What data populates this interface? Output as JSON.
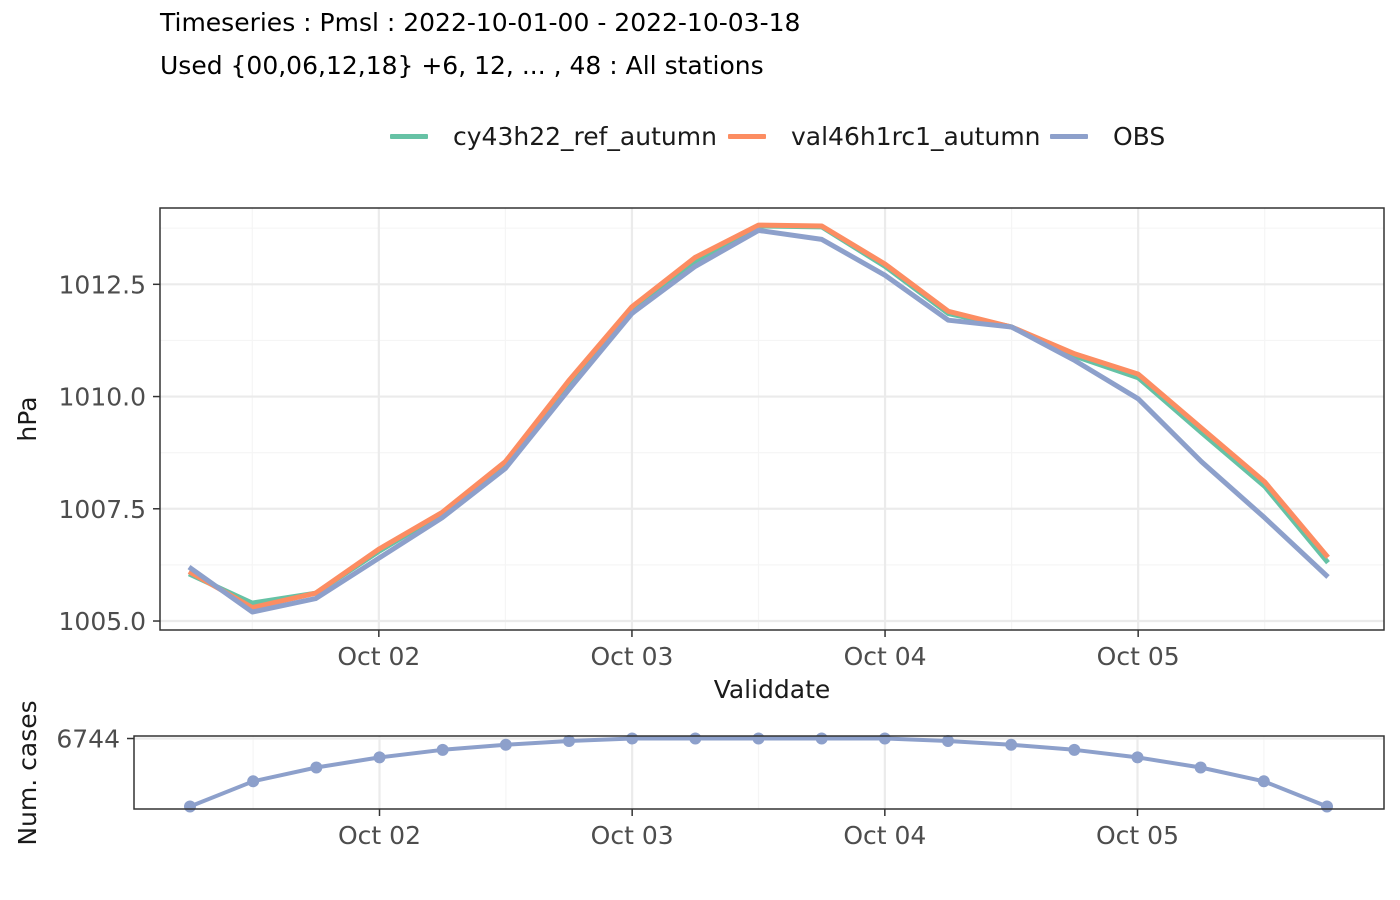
{
  "title_line1": "Timeseries : Pmsl : 2022-10-01-00 - 2022-10-03-18",
  "title_line2": "Used {00,06,12,18} +6, 12, ... , 48 : All stations",
  "colors": {
    "cy43h22_ref_autumn": "#66c2a5",
    "val46h1rc1_autumn": "#fc8d62",
    "OBS": "#8da0cb",
    "cases": "#8da0cb",
    "grid_major": "#ebebeb",
    "grid_minor": "#f5f5f5",
    "axis_text": "#4d4d4d"
  },
  "chart_data": [
    {
      "type": "line",
      "title": "",
      "xlabel": "Validdate",
      "ylabel": "hPa",
      "x": [
        "2022-10-01 06:00",
        "2022-10-01 12:00",
        "2022-10-01 18:00",
        "2022-10-02 00:00",
        "2022-10-02 06:00",
        "2022-10-02 12:00",
        "2022-10-02 18:00",
        "2022-10-03 00:00",
        "2022-10-03 06:00",
        "2022-10-03 12:00",
        "2022-10-03 18:00",
        "2022-10-04 00:00",
        "2022-10-04 06:00",
        "2022-10-04 12:00",
        "2022-10-04 18:00",
        "2022-10-05 00:00",
        "2022-10-05 06:00",
        "2022-10-05 12:00",
        "2022-10-05 18:00"
      ],
      "x_ticks": [
        "Oct 02",
        "Oct 03",
        "Oct 04",
        "Oct 05"
      ],
      "y_ticks": [
        "1005.0",
        "1007.5",
        "1010.0",
        "1012.5"
      ],
      "ylim": [
        1004.8,
        1014.2
      ],
      "grid": true,
      "legend_position": "top",
      "series": [
        {
          "name": "cy43h22_ref_autumn",
          "values": [
            1006.05,
            1005.4,
            1005.62,
            1006.55,
            1007.4,
            1008.52,
            1010.3,
            1011.95,
            1013.0,
            1013.8,
            1013.78,
            1012.9,
            1011.85,
            1011.55,
            1010.9,
            1010.42,
            1009.2,
            1008.0,
            1006.3
          ]
        },
        {
          "name": "val46h1rc1_autumn",
          "values": [
            1006.1,
            1005.3,
            1005.62,
            1006.6,
            1007.42,
            1008.55,
            1010.35,
            1012.0,
            1013.1,
            1013.82,
            1013.8,
            1012.95,
            1011.9,
            1011.55,
            1010.95,
            1010.5,
            1009.3,
            1008.1,
            1006.42
          ]
        },
        {
          "name": "OBS",
          "values": [
            1006.2,
            1005.2,
            1005.5,
            1006.4,
            1007.3,
            1008.4,
            1010.15,
            1011.85,
            1012.9,
            1013.7,
            1013.5,
            1012.7,
            1011.7,
            1011.55,
            1010.8,
            1009.95,
            1008.55,
            1007.3,
            1005.98
          ]
        }
      ]
    },
    {
      "type": "line",
      "title": "",
      "xlabel": "",
      "ylabel": "Num. cases",
      "x_ticks": [
        "Oct 02",
        "Oct 03",
        "Oct 04",
        "Oct 05"
      ],
      "y_ticks": [
        "6744"
      ],
      "ylim": [
        6688,
        6746
      ],
      "grid": true,
      "series": [
        {
          "values": [
            6690,
            6710,
            6721,
            6729,
            6735,
            6739,
            6742,
            6744,
            6744,
            6744,
            6744,
            6744,
            6742,
            6739,
            6735,
            6729,
            6721,
            6710,
            6690
          ]
        }
      ]
    }
  ]
}
